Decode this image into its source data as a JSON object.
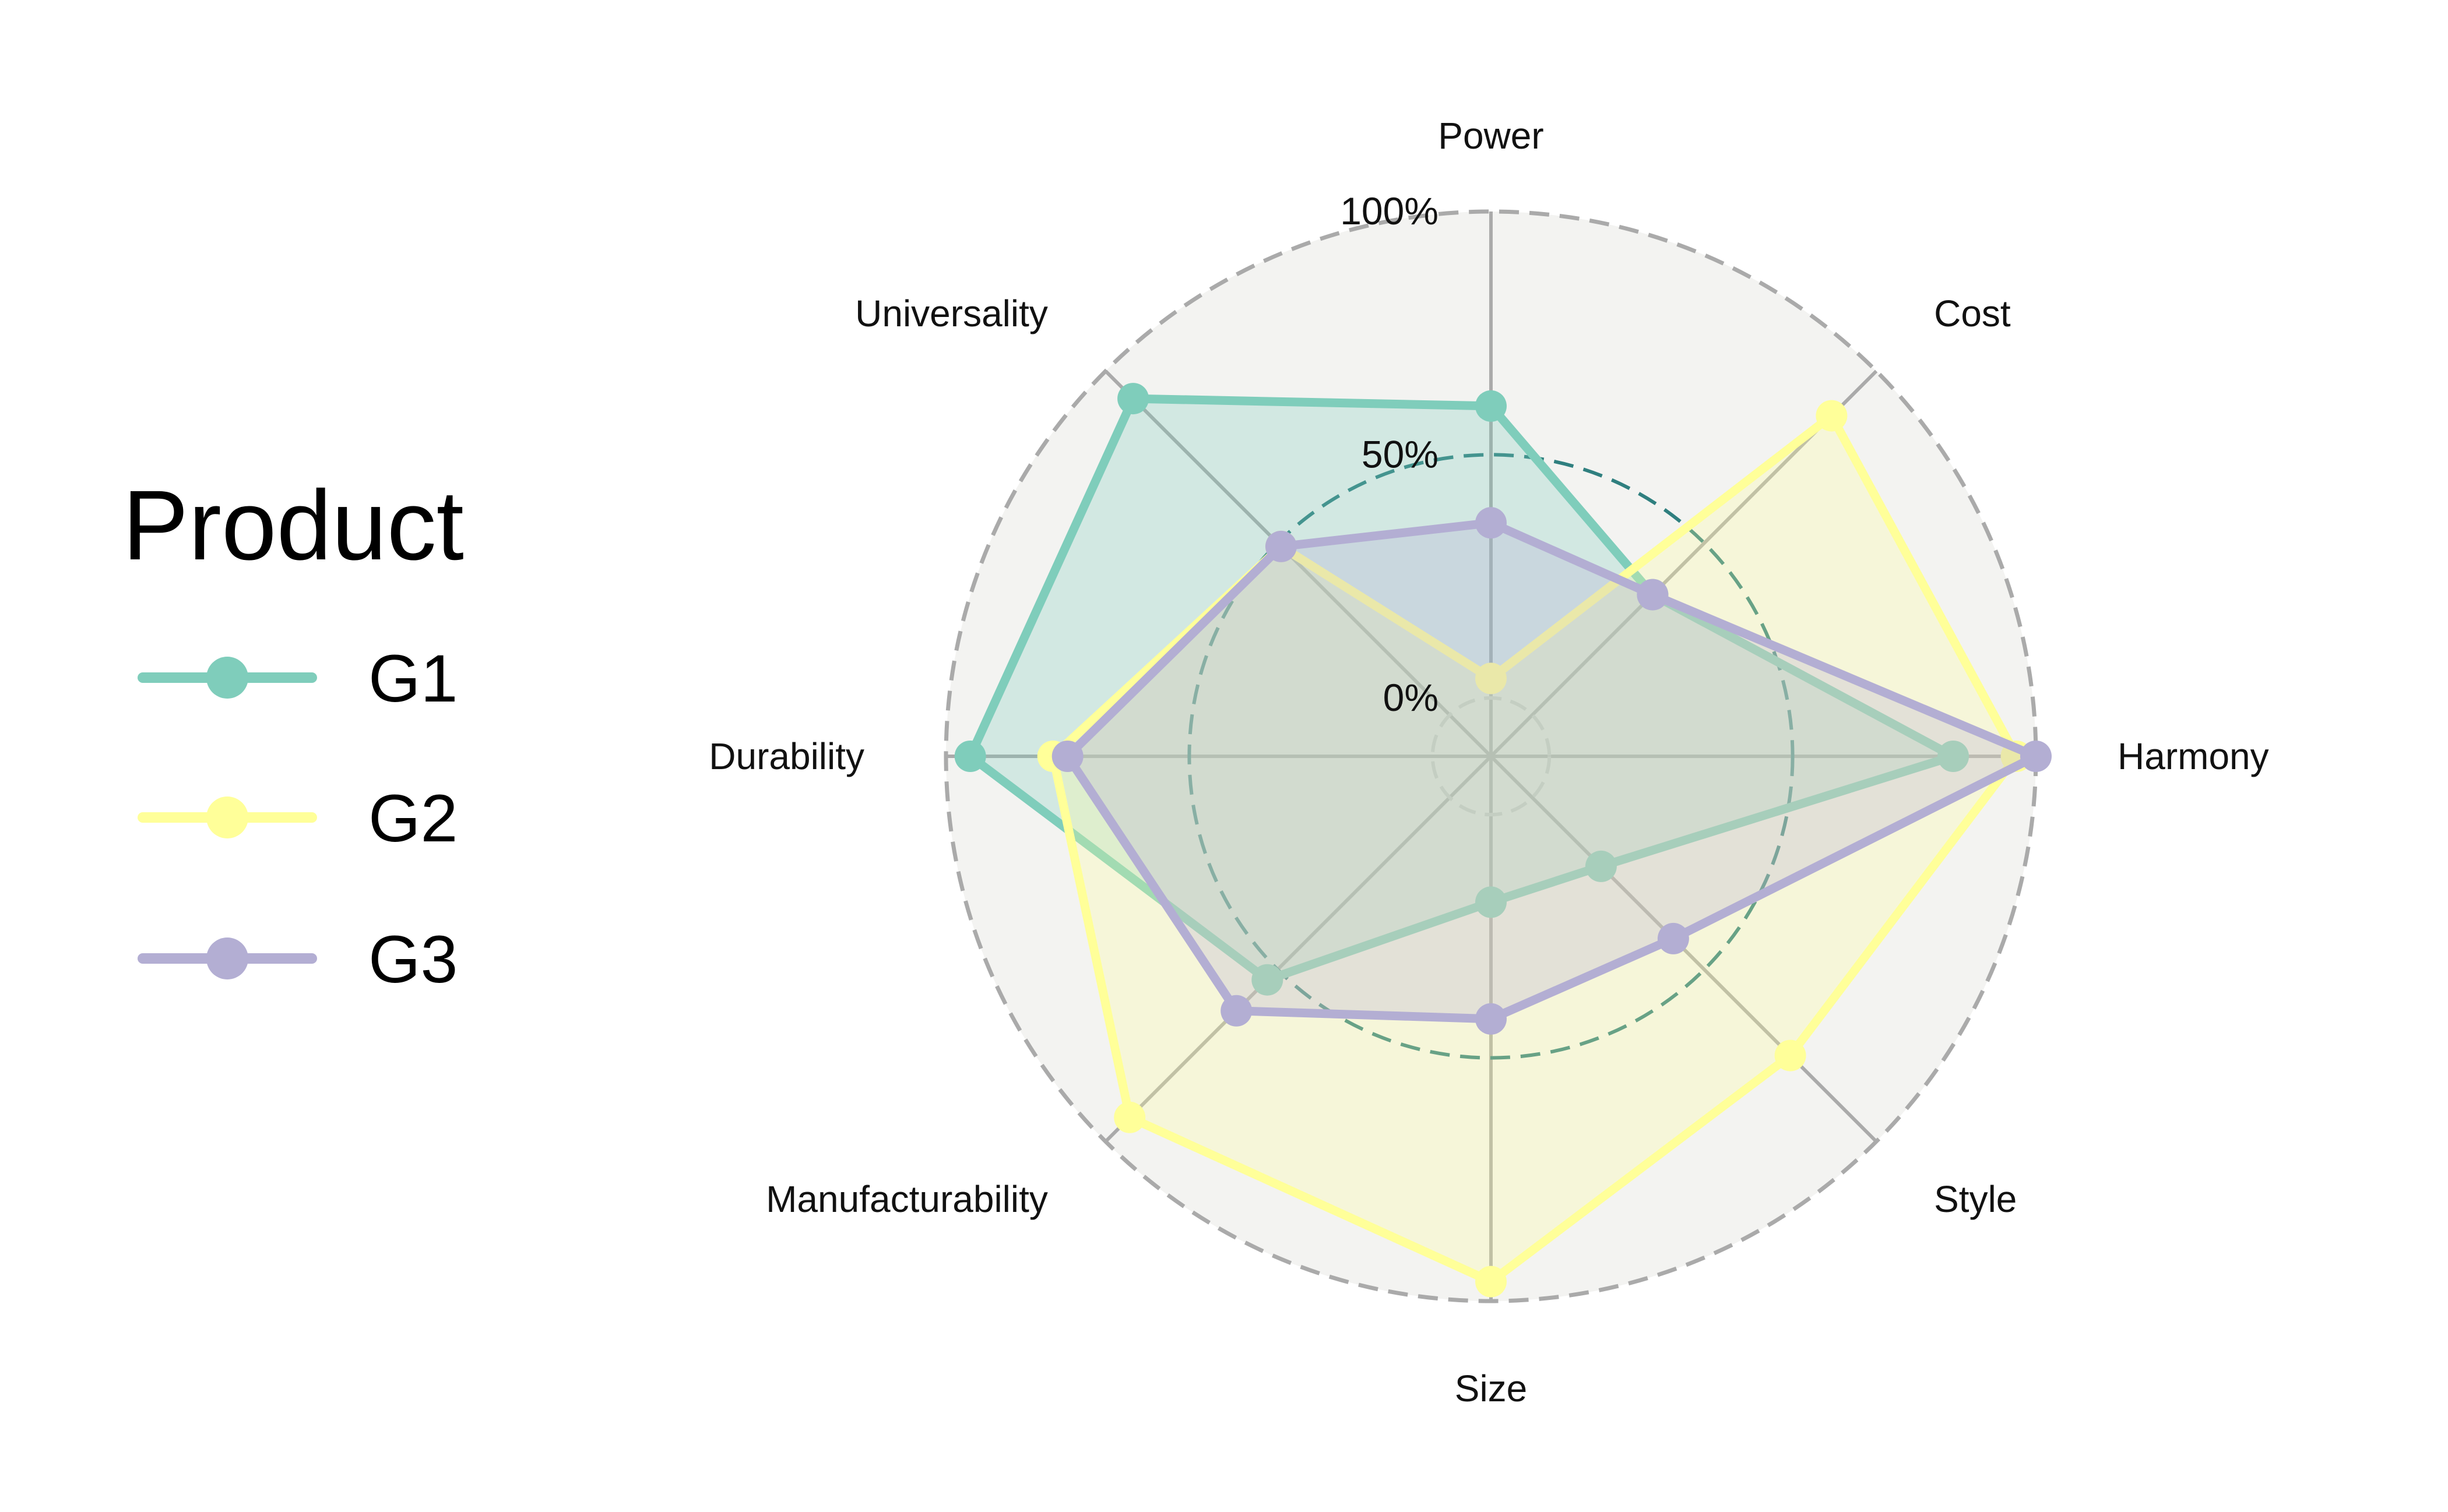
{
  "chart_data": {
    "type": "radar",
    "axes": [
      "Power",
      "Cost",
      "Harmony",
      "Style",
      "Size",
      "Manufacturability",
      "Durability",
      "Universality"
    ],
    "rlim": [
      -12,
      100
    ],
    "ticks": [
      {
        "value": 0,
        "label": "0%"
      },
      {
        "value": 50,
        "label": "50%"
      },
      {
        "value": 100,
        "label": "100%"
      }
    ],
    "series": [
      {
        "name": "G1",
        "color": "#7fcdbb",
        "values": [
          60,
          35,
          83,
          20,
          18,
          53,
          95,
          92
        ]
      },
      {
        "name": "G2",
        "color": "#ffff99",
        "values": [
          4,
          87,
          96,
          75,
          96,
          93,
          78,
          49
        ]
      },
      {
        "name": "G3",
        "color": "#b3aed3",
        "values": [
          36,
          35,
          100,
          41,
          42,
          62,
          75,
          49
        ]
      }
    ],
    "legend": {
      "title": "Product",
      "position": "left"
    },
    "colors": {
      "panel": "#f3f3f1",
      "grid": "#aaaaaa",
      "outer_ring": "#aaaaaa",
      "mid_ring": "#2f7f7f"
    }
  }
}
